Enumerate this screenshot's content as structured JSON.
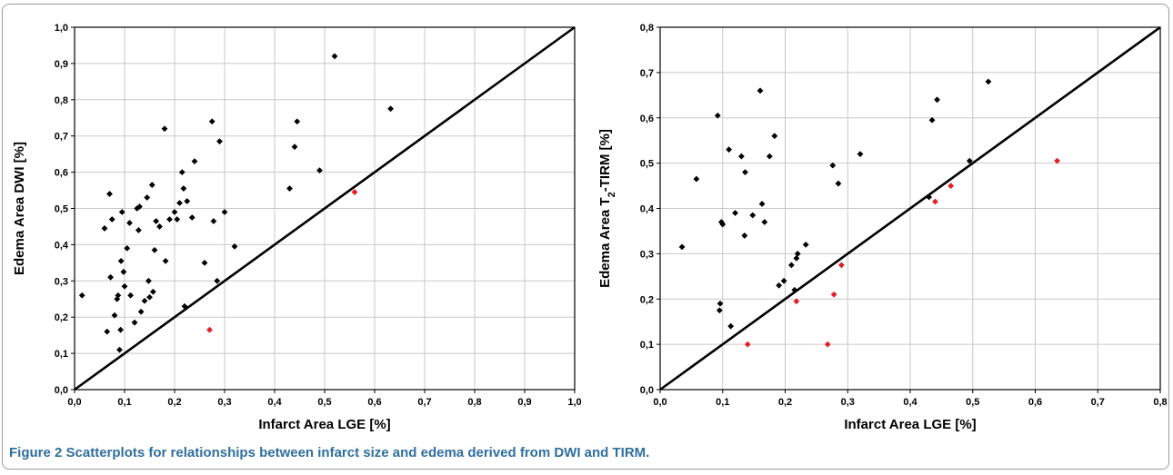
{
  "colors": {
    "black_points": "#000000",
    "red_points": "#e21f26",
    "grid": "#c8c8c8",
    "caption": "#2f6f9f"
  },
  "caption": {
    "label": "Figure 2",
    "text": "Scatterplots for relationships between infarct size and edema derived from DWI and TIRM."
  },
  "chart_data": [
    {
      "type": "scatter",
      "xlabel": "Infarct Area LGE [%]",
      "ylabel": "Edema Area DWI [%]",
      "xlim": [
        0,
        1.0
      ],
      "ylim": [
        0,
        1.0
      ],
      "xticks": [
        "0,0",
        "0,1",
        "0,2",
        "0,3",
        "0,4",
        "0,5",
        "0,6",
        "0,7",
        "0,8",
        "0,9",
        "1,0"
      ],
      "yticks": [
        "0,0",
        "0,1",
        "0,2",
        "0,3",
        "0,4",
        "0,5",
        "0,6",
        "0,7",
        "0,8",
        "0,9",
        "1,0"
      ],
      "grid": true,
      "reference_line": [
        [
          0,
          0
        ],
        [
          1.0,
          1.0
        ]
      ],
      "series": [
        {
          "color": "#000000",
          "points": [
            [
              0.015,
              0.26
            ],
            [
              0.06,
              0.445
            ],
            [
              0.065,
              0.16
            ],
            [
              0.07,
              0.54
            ],
            [
              0.072,
              0.31
            ],
            [
              0.075,
              0.47
            ],
            [
              0.08,
              0.205
            ],
            [
              0.085,
              0.25
            ],
            [
              0.087,
              0.26
            ],
            [
              0.09,
              0.11
            ],
            [
              0.092,
              0.165
            ],
            [
              0.093,
              0.355
            ],
            [
              0.095,
              0.49
            ],
            [
              0.098,
              0.325
            ],
            [
              0.1,
              0.285
            ],
            [
              0.105,
              0.39
            ],
            [
              0.11,
              0.46
            ],
            [
              0.112,
              0.26
            ],
            [
              0.12,
              0.185
            ],
            [
              0.125,
              0.5
            ],
            [
              0.128,
              0.44
            ],
            [
              0.13,
              0.505
            ],
            [
              0.133,
              0.215
            ],
            [
              0.14,
              0.245
            ],
            [
              0.145,
              0.53
            ],
            [
              0.148,
              0.3
            ],
            [
              0.15,
              0.255
            ],
            [
              0.155,
              0.565
            ],
            [
              0.157,
              0.27
            ],
            [
              0.16,
              0.385
            ],
            [
              0.163,
              0.465
            ],
            [
              0.17,
              0.45
            ],
            [
              0.18,
              0.72
            ],
            [
              0.182,
              0.355
            ],
            [
              0.19,
              0.47
            ],
            [
              0.2,
              0.49
            ],
            [
              0.205,
              0.47
            ],
            [
              0.21,
              0.515
            ],
            [
              0.215,
              0.6
            ],
            [
              0.218,
              0.555
            ],
            [
              0.22,
              0.23
            ],
            [
              0.225,
              0.52
            ],
            [
              0.235,
              0.475
            ],
            [
              0.24,
              0.63
            ],
            [
              0.26,
              0.35
            ],
            [
              0.275,
              0.74
            ],
            [
              0.278,
              0.465
            ],
            [
              0.285,
              0.3
            ],
            [
              0.29,
              0.685
            ],
            [
              0.3,
              0.49
            ],
            [
              0.32,
              0.395
            ],
            [
              0.43,
              0.555
            ],
            [
              0.44,
              0.67
            ],
            [
              0.445,
              0.74
            ],
            [
              0.49,
              0.605
            ],
            [
              0.52,
              0.92
            ],
            [
              0.632,
              0.775
            ]
          ]
        },
        {
          "color": "#e21f26",
          "points": [
            [
              0.27,
              0.165
            ],
            [
              0.56,
              0.545
            ]
          ]
        }
      ]
    },
    {
      "type": "scatter",
      "xlabel": "Infarct Area LGE [%]",
      "ylabel_prefix": "Edema Area T",
      "ylabel_sub": "2",
      "ylabel_suffix": "-TIRM [%]",
      "xlim": [
        0,
        0.8
      ],
      "ylim": [
        0,
        0.8
      ],
      "xticks": [
        "0,0",
        "0,1",
        "0,2",
        "0,3",
        "0,4",
        "0,5",
        "0,6",
        "0,7",
        "0,8"
      ],
      "yticks": [
        "0,0",
        "0,1",
        "0,2",
        "0,3",
        "0,4",
        "0,5",
        "0,6",
        "0,7",
        "0,8"
      ],
      "grid": true,
      "reference_line": [
        [
          0,
          0
        ],
        [
          0.8,
          0.8
        ]
      ],
      "series": [
        {
          "color": "#000000",
          "points": [
            [
              0.035,
              0.315
            ],
            [
              0.058,
              0.465
            ],
            [
              0.092,
              0.605
            ],
            [
              0.095,
              0.175
            ],
            [
              0.096,
              0.19
            ],
            [
              0.098,
              0.37
            ],
            [
              0.1,
              0.365
            ],
            [
              0.11,
              0.53
            ],
            [
              0.113,
              0.14
            ],
            [
              0.12,
              0.39
            ],
            [
              0.13,
              0.515
            ],
            [
              0.135,
              0.34
            ],
            [
              0.136,
              0.48
            ],
            [
              0.148,
              0.385
            ],
            [
              0.16,
              0.66
            ],
            [
              0.163,
              0.41
            ],
            [
              0.167,
              0.37
            ],
            [
              0.175,
              0.515
            ],
            [
              0.183,
              0.56
            ],
            [
              0.19,
              0.23
            ],
            [
              0.198,
              0.24
            ],
            [
              0.21,
              0.275
            ],
            [
              0.215,
              0.22
            ],
            [
              0.218,
              0.29
            ],
            [
              0.22,
              0.3
            ],
            [
              0.233,
              0.32
            ],
            [
              0.276,
              0.495
            ],
            [
              0.285,
              0.455
            ],
            [
              0.32,
              0.52
            ],
            [
              0.43,
              0.425
            ],
            [
              0.435,
              0.595
            ],
            [
              0.443,
              0.64
            ],
            [
              0.495,
              0.505
            ],
            [
              0.525,
              0.68
            ]
          ]
        },
        {
          "color": "#e21f26",
          "points": [
            [
              0.14,
              0.1
            ],
            [
              0.218,
              0.195
            ],
            [
              0.268,
              0.1
            ],
            [
              0.278,
              0.21
            ],
            [
              0.29,
              0.275
            ],
            [
              0.44,
              0.415
            ],
            [
              0.465,
              0.45
            ],
            [
              0.635,
              0.505
            ]
          ]
        }
      ]
    }
  ]
}
